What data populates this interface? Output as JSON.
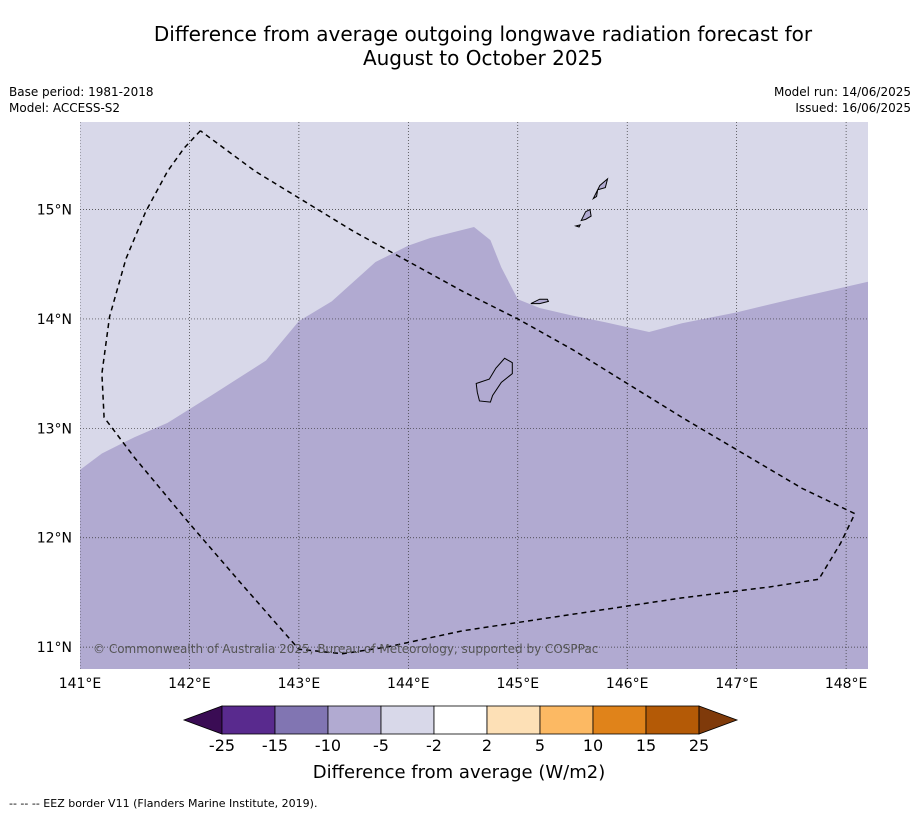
{
  "title_line1": "Difference from average outgoing longwave radiation forecast for",
  "title_line2": "August to October 2025",
  "base_period": "Base period: 1981-2018",
  "model": "Model: ACCESS-S2",
  "model_run": "Model run: 14/06/2025",
  "issued": "Issued: 16/06/2025",
  "copyright": "© Commonwealth of Australia 2025, Bureau of Meteorology, supported by COSPPac",
  "footnote": "--  --  -- EEZ border V11 (Flanders Marine Institute, 2019).",
  "map": {
    "lon_range": [
      141.0,
      148.2
    ],
    "lat_range": [
      10.8,
      15.8
    ],
    "lon_ticks": [
      {
        "value": 141,
        "label": "141°E"
      },
      {
        "value": 142,
        "label": "142°E"
      },
      {
        "value": 143,
        "label": "143°E"
      },
      {
        "value": 144,
        "label": "144°E"
      },
      {
        "value": 145,
        "label": "145°E"
      },
      {
        "value": 146,
        "label": "146°E"
      },
      {
        "value": 147,
        "label": "147°E"
      },
      {
        "value": 148,
        "label": "148°E"
      }
    ],
    "lat_ticks": [
      {
        "value": 15,
        "label": "15°N"
      },
      {
        "value": 14,
        "label": "14°N"
      },
      {
        "value": 13,
        "label": "13°N"
      },
      {
        "value": 12,
        "label": "12°N"
      },
      {
        "value": 11,
        "label": "11°N"
      }
    ],
    "background_category": "-5 to -2",
    "background_color": "#d8d8e9",
    "region_category": "-10 to -5",
    "region_color": "#b1aad1",
    "region_boundary": [
      [
        141.0,
        12.62
      ],
      [
        141.2,
        12.77
      ],
      [
        141.5,
        12.92
      ],
      [
        141.8,
        13.05
      ],
      [
        142.2,
        13.3
      ],
      [
        142.7,
        13.62
      ],
      [
        143.0,
        13.98
      ],
      [
        143.3,
        14.16
      ],
      [
        143.7,
        14.52
      ],
      [
        144.0,
        14.67
      ],
      [
        144.2,
        14.74
      ],
      [
        144.6,
        14.84
      ],
      [
        144.75,
        14.72
      ],
      [
        144.85,
        14.47
      ],
      [
        145.0,
        14.18
      ],
      [
        145.2,
        14.1
      ],
      [
        145.5,
        14.03
      ],
      [
        145.8,
        13.97
      ],
      [
        146.2,
        13.88
      ],
      [
        146.5,
        13.96
      ],
      [
        147.0,
        14.06
      ],
      [
        147.5,
        14.18
      ],
      [
        148.2,
        14.34
      ]
    ],
    "eez_border": [
      [
        142.1,
        15.72
      ],
      [
        141.95,
        15.56
      ],
      [
        141.8,
        15.35
      ],
      [
        141.6,
        14.98
      ],
      [
        141.42,
        14.55
      ],
      [
        141.27,
        14.02
      ],
      [
        141.2,
        13.5
      ],
      [
        141.22,
        13.1
      ],
      [
        141.5,
        12.73
      ],
      [
        142.0,
        12.13
      ],
      [
        142.5,
        11.55
      ],
      [
        143.0,
        10.98
      ],
      [
        143.4,
        10.94
      ],
      [
        143.8,
        11.0
      ],
      [
        144.5,
        11.15
      ],
      [
        145.5,
        11.3
      ],
      [
        146.5,
        11.45
      ],
      [
        147.3,
        11.55
      ],
      [
        147.75,
        11.62
      ],
      [
        147.95,
        11.95
      ],
      [
        148.08,
        12.22
      ],
      [
        147.6,
        12.45
      ],
      [
        146.5,
        13.1
      ],
      [
        145.5,
        13.72
      ],
      [
        145.0,
        14.0
      ],
      [
        144.5,
        14.25
      ],
      [
        143.5,
        14.8
      ],
      [
        142.6,
        15.35
      ],
      [
        142.1,
        15.72
      ]
    ],
    "islands": [
      {
        "name": "Guam",
        "outline": [
          [
            144.62,
            13.41
          ],
          [
            144.74,
            13.45
          ],
          [
            144.8,
            13.55
          ],
          [
            144.88,
            13.64
          ],
          [
            144.95,
            13.6
          ],
          [
            144.95,
            13.5
          ],
          [
            144.85,
            13.42
          ],
          [
            144.77,
            13.3
          ],
          [
            144.75,
            13.24
          ],
          [
            144.65,
            13.25
          ],
          [
            144.63,
            13.33
          ]
        ]
      },
      {
        "name": "Rota",
        "outline": [
          [
            145.12,
            14.14
          ],
          [
            145.2,
            14.18
          ],
          [
            145.27,
            14.18
          ],
          [
            145.28,
            14.16
          ],
          [
            145.2,
            14.14
          ]
        ]
      },
      {
        "name": "Tinian",
        "outline": [
          [
            145.58,
            14.9
          ],
          [
            145.62,
            14.98
          ],
          [
            145.66,
            15.0
          ],
          [
            145.67,
            14.94
          ],
          [
            145.62,
            14.91
          ]
        ]
      },
      {
        "name": "Saipan",
        "outline": [
          [
            145.69,
            15.1
          ],
          [
            145.75,
            15.22
          ],
          [
            145.82,
            15.28
          ],
          [
            145.8,
            15.2
          ],
          [
            145.73,
            15.18
          ],
          [
            145.72,
            15.12
          ]
        ]
      },
      {
        "name": "Aguijan",
        "outline": [
          [
            145.53,
            14.85
          ],
          [
            145.57,
            14.86
          ],
          [
            145.56,
            14.84
          ]
        ]
      }
    ]
  },
  "colorbar": {
    "title": "Difference from average (W/m2)",
    "labels": [
      "-25",
      "-15",
      "-10",
      "-5",
      "-2",
      "2",
      "5",
      "10",
      "15",
      "25"
    ],
    "low_extend_color": "#3a0c54",
    "high_extend_color": "#7f3a0a",
    "colors": [
      "#592a8e",
      "#8175b2",
      "#b1aad1",
      "#d8d8e9",
      "#ffffff",
      "#fde0b6",
      "#fcb963",
      "#e0831a",
      "#b45a06"
    ]
  }
}
